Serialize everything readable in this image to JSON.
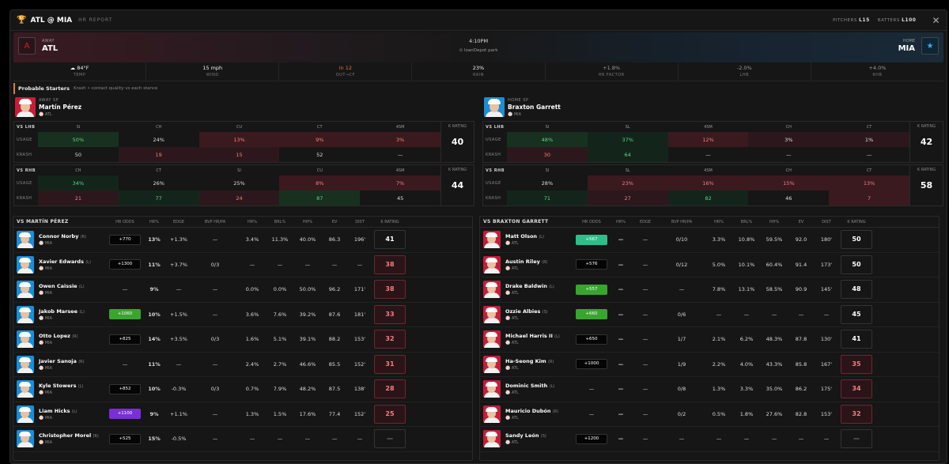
{
  "header": {
    "title": "ATL @ MIA",
    "subtitle": "HR REPORT",
    "pitchers_label": "PITCHERS",
    "pitchers_val": "L15",
    "batters_label": "BATTERS",
    "batters_val": "L100",
    "close": "✕"
  },
  "match": {
    "away_label": "AWAY",
    "away": "ATL",
    "home_label": "HOME",
    "home": "MIA",
    "time": "4:10PM",
    "venue": "loanDepot park"
  },
  "weather": [
    {
      "value": "84°F",
      "label": "TEMP"
    },
    {
      "value": "15 mph",
      "label": "WIND"
    },
    {
      "value": "in 12",
      "label": "OUT→CF"
    },
    {
      "value": "23%",
      "label": "RAIN"
    },
    {
      "value": "+1.8%",
      "label": "HR FACTOR"
    },
    {
      "value": "-2.0%",
      "label": "LHB"
    },
    {
      "value": "+4.0%",
      "label": "RHB"
    }
  ],
  "starters": {
    "title": "Probable Starters",
    "sub": "Krash • contact quality vs each stance"
  },
  "away_sp": {
    "label": "AWAY SP",
    "name": "Martín Pérez",
    "team": "ATL",
    "lhb": {
      "hdr": "VS LHB",
      "pitches": [
        "SI",
        "CH",
        "CU",
        "CT",
        "4SM"
      ],
      "usage": [
        "50%",
        "24%",
        "13%",
        "9%",
        "3%"
      ],
      "krash": [
        "50",
        "19",
        "15",
        "52",
        "—"
      ],
      "k": "40"
    },
    "rhb": {
      "hdr": "VS RHB",
      "pitches": [
        "CH",
        "CT",
        "SI",
        "CU",
        "4SM"
      ],
      "usage": [
        "34%",
        "26%",
        "25%",
        "8%",
        "7%"
      ],
      "krash": [
        "21",
        "77",
        "24",
        "87",
        "45"
      ],
      "k": "44"
    }
  },
  "home_sp": {
    "label": "HOME SP",
    "name": "Braxton Garrett",
    "team": "MIA",
    "lhb": {
      "hdr": "VS LHB",
      "pitches": [
        "SI",
        "SL",
        "4SM",
        "CH",
        "CT"
      ],
      "usage": [
        "48%",
        "37%",
        "12%",
        "3%",
        "1%"
      ],
      "krash": [
        "30",
        "64",
        "—",
        "—",
        "—"
      ],
      "k": "42"
    },
    "rhb": {
      "hdr": "VS RHB",
      "pitches": [
        "SI",
        "SL",
        "4SM",
        "CH",
        "CT"
      ],
      "usage": [
        "28%",
        "23%",
        "16%",
        "15%",
        "13%"
      ],
      "krash": [
        "71",
        "27",
        "82",
        "46",
        "7"
      ],
      "k": "58"
    }
  },
  "labels": {
    "usage": "USAGE",
    "krash": "KRASH",
    "k_rating": "K RATING"
  },
  "cols": [
    "HR ODDS",
    "HR%",
    "EDGE",
    "BVP HR/PA",
    "HR%",
    "BRL%",
    "HH%",
    "EV",
    "DIST",
    "K RATING"
  ],
  "left_table": {
    "title": "VS MARTÍN PÉREZ",
    "rows": [
      {
        "name": "Connor Norby",
        "hand": "(R)",
        "team": "MIA",
        "odds": "+770",
        "oc": "",
        "hr": "13%",
        "edge": "+1.3%",
        "bvp": "—",
        "hrp": "3.4%",
        "brl": "11.3%",
        "hh": "40.0%",
        "ev": "86.3",
        "dist": "196'",
        "k": "41"
      },
      {
        "name": "Xavier Edwards",
        "hand": "(L)",
        "team": "MIA",
        "odds": "+1300",
        "oc": "",
        "hr": "11%",
        "edge": "+3.7%",
        "bvp": "0/3",
        "hrp": "—",
        "brl": "—",
        "hh": "—",
        "ev": "—",
        "dist": "—",
        "k": "38"
      },
      {
        "name": "Owen Caissie",
        "hand": "(L)",
        "team": "MIA",
        "odds": "—",
        "oc": "none",
        "hr": "9%",
        "edge": "—",
        "bvp": "—",
        "hrp": "0.0%",
        "brl": "0.0%",
        "hh": "50.0%",
        "ev": "96.2",
        "dist": "171'",
        "k": "38"
      },
      {
        "name": "Jakob Marsee",
        "hand": "(L)",
        "team": "MIA",
        "odds": "+1060",
        "oc": "green",
        "hr": "10%",
        "edge": "+1.5%",
        "bvp": "—",
        "hrp": "3.6%",
        "brl": "7.6%",
        "hh": "39.2%",
        "ev": "87.6",
        "dist": "181'",
        "k": "33"
      },
      {
        "name": "Otto Lopez",
        "hand": "(R)",
        "team": "MIA",
        "odds": "+825",
        "oc": "",
        "hr": "14%",
        "edge": "+3.5%",
        "bvp": "0/3",
        "hrp": "1.6%",
        "brl": "5.1%",
        "hh": "39.1%",
        "ev": "88.2",
        "dist": "153'",
        "k": "32"
      },
      {
        "name": "Javier Sanoja",
        "hand": "(R)",
        "team": "MIA",
        "odds": "—",
        "oc": "none",
        "hr": "11%",
        "edge": "—",
        "bvp": "—",
        "hrp": "2.4%",
        "brl": "2.7%",
        "hh": "46.6%",
        "ev": "85.5",
        "dist": "152'",
        "k": "31"
      },
      {
        "name": "Kyle Stowers",
        "hand": "(L)",
        "team": "MIA",
        "odds": "+852",
        "oc": "",
        "hr": "10%",
        "edge": "-0.3%",
        "bvp": "0/3",
        "hrp": "0.7%",
        "brl": "7.9%",
        "hh": "48.2%",
        "ev": "87.5",
        "dist": "138'",
        "k": "28"
      },
      {
        "name": "Liam Hicks",
        "hand": "(L)",
        "team": "MIA",
        "odds": "+1100",
        "oc": "purple",
        "hr": "9%",
        "edge": "+1.1%",
        "bvp": "—",
        "hrp": "1.3%",
        "brl": "1.5%",
        "hh": "17.6%",
        "ev": "77.4",
        "dist": "152'",
        "k": "25"
      },
      {
        "name": "Christopher Morel",
        "hand": "(R)",
        "team": "MIA",
        "odds": "+525",
        "oc": "",
        "hr": "15%",
        "edge": "-0.5%",
        "bvp": "—",
        "hrp": "—",
        "brl": "—",
        "hh": "—",
        "ev": "—",
        "dist": "—",
        "k": "—"
      }
    ]
  },
  "right_table": {
    "title": "VS BRAXTON GARRETT",
    "rows": [
      {
        "name": "Matt Olson",
        "hand": "(L)",
        "team": "ATL",
        "odds": "+567",
        "oc": "teal",
        "hr": "—",
        "edge": "—",
        "bvp": "0/10",
        "hrp": "3.3%",
        "brl": "10.8%",
        "hh": "59.5%",
        "ev": "92.0",
        "dist": "180'",
        "k": "50"
      },
      {
        "name": "Austin Riley",
        "hand": "(R)",
        "team": "ATL",
        "odds": "+576",
        "oc": "",
        "hr": "—",
        "edge": "—",
        "bvp": "0/12",
        "hrp": "5.0%",
        "brl": "10.1%",
        "hh": "60.4%",
        "ev": "91.4",
        "dist": "173'",
        "k": "50"
      },
      {
        "name": "Drake Baldwin",
        "hand": "(L)",
        "team": "ATL",
        "odds": "+557",
        "oc": "green",
        "hr": "—",
        "edge": "—",
        "bvp": "—",
        "hrp": "7.8%",
        "brl": "13.1%",
        "hh": "58.5%",
        "ev": "90.9",
        "dist": "145'",
        "k": "48"
      },
      {
        "name": "Ozzie Albies",
        "hand": "(S)",
        "team": "ATL",
        "odds": "+660",
        "oc": "green",
        "hr": "—",
        "edge": "—",
        "bvp": "0/6",
        "hrp": "—",
        "brl": "—",
        "hh": "—",
        "ev": "—",
        "dist": "—",
        "k": "45"
      },
      {
        "name": "Michael Harris II",
        "hand": "(L)",
        "team": "ATL",
        "odds": "+650",
        "oc": "",
        "hr": "—",
        "edge": "—",
        "bvp": "1/7",
        "hrp": "2.1%",
        "brl": "6.2%",
        "hh": "48.3%",
        "ev": "87.8",
        "dist": "130'",
        "k": "41"
      },
      {
        "name": "Ha-Seong Kim",
        "hand": "(R)",
        "team": "ATL",
        "odds": "+1000",
        "oc": "",
        "hr": "—",
        "edge": "—",
        "bvp": "1/9",
        "hrp": "2.2%",
        "brl": "4.0%",
        "hh": "43.3%",
        "ev": "85.8",
        "dist": "167'",
        "k": "35"
      },
      {
        "name": "Dominic Smith",
        "hand": "(L)",
        "team": "ATL",
        "odds": "—",
        "oc": "none",
        "hr": "—",
        "edge": "—",
        "bvp": "0/8",
        "hrp": "1.3%",
        "brl": "3.3%",
        "hh": "35.0%",
        "ev": "86.2",
        "dist": "175'",
        "k": "34"
      },
      {
        "name": "Mauricio Dubón",
        "hand": "(R)",
        "team": "ATL",
        "odds": "—",
        "oc": "none",
        "hr": "—",
        "edge": "—",
        "bvp": "0/2",
        "hrp": "0.5%",
        "brl": "1.8%",
        "hh": "27.6%",
        "ev": "82.8",
        "dist": "153'",
        "k": "32"
      },
      {
        "name": "Sandy León",
        "hand": "(S)",
        "team": "ATL",
        "odds": "+1200",
        "oc": "",
        "hr": "—",
        "edge": "—",
        "bvp": "—",
        "hrp": "—",
        "brl": "—",
        "hh": "—",
        "ev": "—",
        "dist": "—",
        "k": "—"
      }
    ]
  }
}
